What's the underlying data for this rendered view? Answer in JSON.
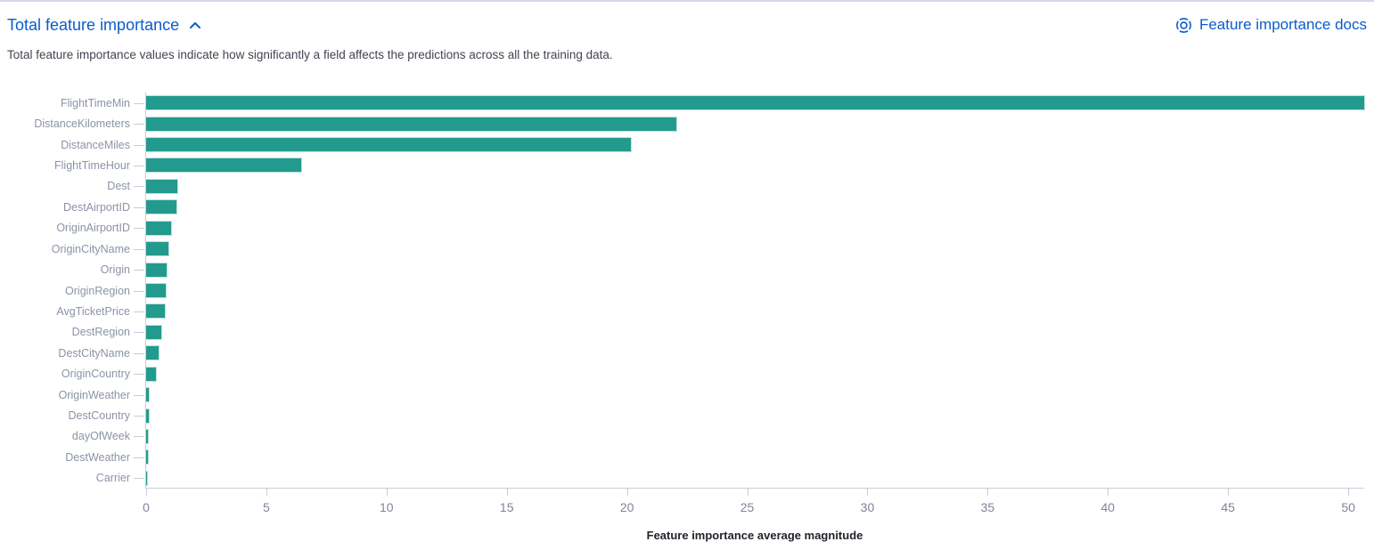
{
  "header": {
    "title": "Total feature importance",
    "docs_label": "Feature importance docs"
  },
  "description": "Total feature importance values indicate how significantly a field affects the predictions across all the training data.",
  "icons": {
    "collapse": "chevron-up-icon",
    "docs": "lifebuoy-icon"
  },
  "colors": {
    "bar": "#229b8e",
    "link": "#0b5ccc",
    "axis_line": "#c9cdd8",
    "axis_tick_label": "#7d8598",
    "category_label": "#8b93a6",
    "top_rule": "#d5d8e6"
  },
  "chart_data": {
    "type": "bar",
    "orientation": "horizontal",
    "categories": [
      "FlightTimeMin",
      "DistanceKilometers",
      "DistanceMiles",
      "FlightTimeHour",
      "Dest",
      "DestAirportID",
      "OriginAirportID",
      "OriginCityName",
      "Origin",
      "OriginRegion",
      "AvgTicketPrice",
      "DestRegion",
      "DestCityName",
      "OriginCountry",
      "OriginWeather",
      "DestCountry",
      "dayOfWeek",
      "DestWeather",
      "Carrier"
    ],
    "values": [
      50.7,
      22.1,
      20.2,
      6.5,
      1.35,
      1.28,
      1.06,
      0.95,
      0.9,
      0.86,
      0.83,
      0.68,
      0.57,
      0.43,
      0.15,
      0.14,
      0.12,
      0.1,
      0.03
    ],
    "xlabel": "Feature importance average magnitude",
    "ylabel": "",
    "xlim": [
      0,
      50.7
    ],
    "xticks": [
      0,
      5,
      10,
      15,
      20,
      25,
      30,
      35,
      40,
      45,
      50
    ],
    "grid": false,
    "legend": false,
    "bar_color": "#229b8e"
  }
}
